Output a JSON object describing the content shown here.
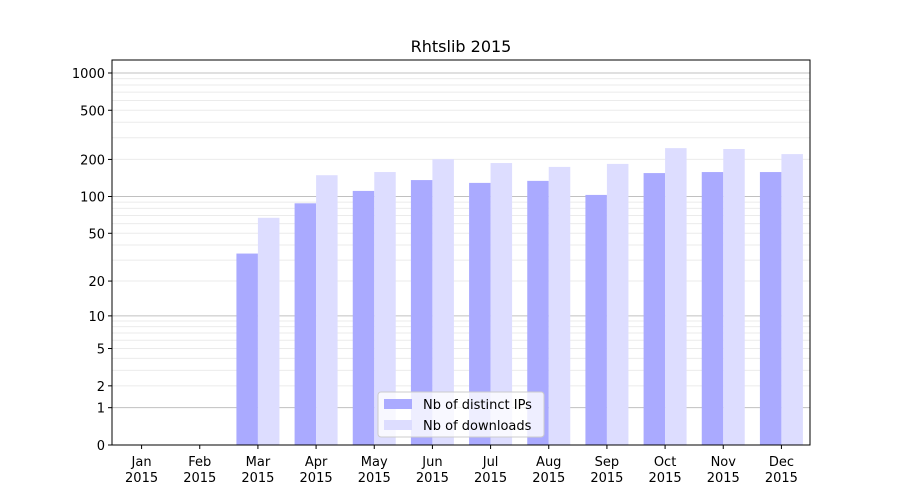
{
  "chart_data": {
    "type": "bar",
    "title": "Rhtslib 2015",
    "xlabel": "",
    "ylabel": "",
    "yscale": "log(x+1)",
    "ylim": [
      0,
      1273
    ],
    "yticks": [
      0,
      1,
      2,
      5,
      10,
      20,
      50,
      100,
      200,
      500,
      1000
    ],
    "grid": true,
    "legend_position": "lower-center",
    "categories": [
      "Jan\n2015",
      "Feb\n2015",
      "Mar\n2015",
      "Apr\n2015",
      "May\n2015",
      "Jun\n2015",
      "Jul\n2015",
      "Aug\n2015",
      "Sep\n2015",
      "Oct\n2015",
      "Nov\n2015",
      "Dec\n2015"
    ],
    "series": [
      {
        "name": "Nb of distinct IPs",
        "color": "#aaaaff",
        "values": [
          0,
          0,
          34,
          88,
          111,
          136,
          129,
          134,
          103,
          155,
          158,
          158
        ]
      },
      {
        "name": "Nb of downloads",
        "color": "#ddddff",
        "values": [
          0,
          0,
          67,
          149,
          158,
          201,
          187,
          174,
          184,
          247,
          243,
          221
        ]
      }
    ]
  }
}
